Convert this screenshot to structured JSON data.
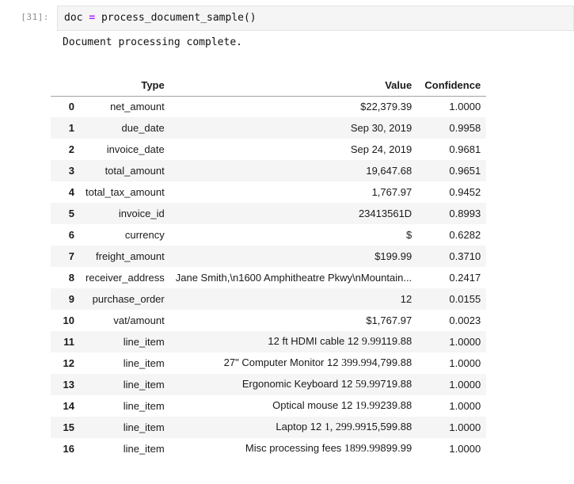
{
  "notebook": {
    "cell": {
      "prompt": "[31]:",
      "code_tokens": [
        {
          "text": "doc ",
          "style": "plain"
        },
        {
          "text": "=",
          "style": "operator"
        },
        {
          "text": " process_document_sample()",
          "style": "plain"
        }
      ],
      "output_text": "Document processing complete."
    },
    "table": {
      "columns": [
        "Type",
        "Value",
        "Confidence"
      ],
      "rows": [
        {
          "index": "0",
          "type": "net_amount",
          "value_parts": [
            {
              "text": "$22,379.39"
            }
          ],
          "confidence": "1.0000"
        },
        {
          "index": "1",
          "type": "due_date",
          "value_parts": [
            {
              "text": "Sep 30, 2019"
            }
          ],
          "confidence": "0.9958"
        },
        {
          "index": "2",
          "type": "invoice_date",
          "value_parts": [
            {
              "text": "Sep 24, 2019"
            }
          ],
          "confidence": "0.9681"
        },
        {
          "index": "3",
          "type": "total_amount",
          "value_parts": [
            {
              "text": "19,647.68"
            }
          ],
          "confidence": "0.9651"
        },
        {
          "index": "4",
          "type": "total_tax_amount",
          "value_parts": [
            {
              "text": "1,767.97"
            }
          ],
          "confidence": "0.9452"
        },
        {
          "index": "5",
          "type": "invoice_id",
          "value_parts": [
            {
              "text": "23413561D"
            }
          ],
          "confidence": "0.8993"
        },
        {
          "index": "6",
          "type": "currency",
          "value_parts": [
            {
              "text": "$"
            }
          ],
          "confidence": "0.6282"
        },
        {
          "index": "7",
          "type": "freight_amount",
          "value_parts": [
            {
              "text": "$199.99"
            }
          ],
          "confidence": "0.3710"
        },
        {
          "index": "8",
          "type": "receiver_address",
          "value_parts": [
            {
              "text": "Jane Smith,\\n1600 Amphitheatre Pkwy\\nMountain..."
            }
          ],
          "confidence": "0.2417"
        },
        {
          "index": "9",
          "type": "purchase_order",
          "value_parts": [
            {
              "text": "12"
            }
          ],
          "confidence": "0.0155"
        },
        {
          "index": "10",
          "type": "vat/amount",
          "value_parts": [
            {
              "text": "$1,767.97"
            }
          ],
          "confidence": "0.0023"
        },
        {
          "index": "11",
          "type": "line_item",
          "value_parts": [
            {
              "text": "12 ft HDMI cable 12 "
            },
            {
              "text": "9.99",
              "serif": true
            },
            {
              "text": "119.88"
            }
          ],
          "confidence": "1.0000"
        },
        {
          "index": "12",
          "type": "line_item",
          "value_parts": [
            {
              "text": "27\" Computer Monitor 12 "
            },
            {
              "text": "399.99",
              "serif": true
            },
            {
              "text": "4,799.88"
            }
          ],
          "confidence": "1.0000"
        },
        {
          "index": "13",
          "type": "line_item",
          "value_parts": [
            {
              "text": "Ergonomic Keyboard 12 "
            },
            {
              "text": "59.99",
              "serif": true
            },
            {
              "text": "719.88"
            }
          ],
          "confidence": "1.0000"
        },
        {
          "index": "14",
          "type": "line_item",
          "value_parts": [
            {
              "text": "Optical mouse 12 "
            },
            {
              "text": "19.99",
              "serif": true
            },
            {
              "text": "239.88"
            }
          ],
          "confidence": "1.0000"
        },
        {
          "index": "15",
          "type": "line_item",
          "value_parts": [
            {
              "text": "Laptop 12 "
            },
            {
              "text": "1, 299.99",
              "serif": true
            },
            {
              "text": "15,599.88"
            }
          ],
          "confidence": "1.0000"
        },
        {
          "index": "16",
          "type": "line_item",
          "value_parts": [
            {
              "text": "Misc processing fees "
            },
            {
              "text": "1899.99",
              "serif": true
            },
            {
              "text": "899.99"
            }
          ],
          "confidence": "1.0000"
        }
      ]
    }
  }
}
